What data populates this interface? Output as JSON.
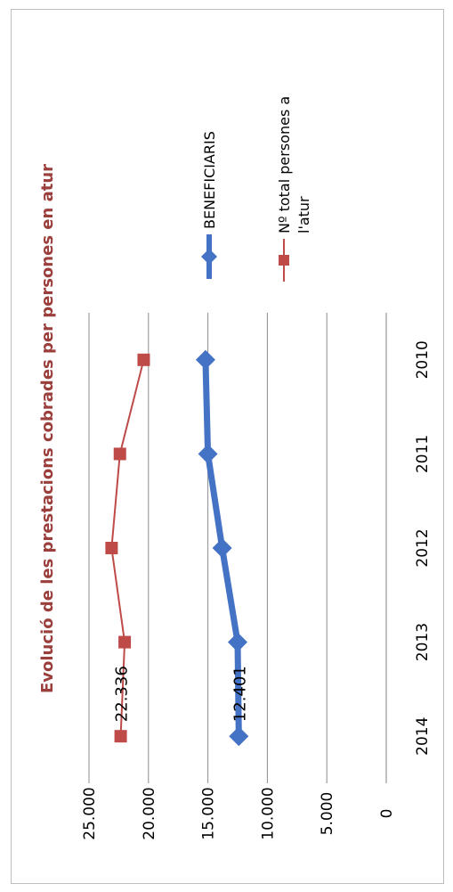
{
  "chart_data": {
    "type": "line",
    "title": "Evolució de les prestacions cobrades per persones en atur",
    "categories": [
      "2010",
      "2011",
      "2012",
      "2013",
      "2014"
    ],
    "series": [
      {
        "name": "BENEFICIARIS",
        "values": [
          15200,
          15000,
          13800,
          12500,
          12401
        ],
        "color": "#4472c4",
        "marker": "diamond",
        "data_label": "12.401"
      },
      {
        "name": "Nº total persones a l'atur",
        "name_lines": [
          "Nº total persones a",
          "l'atur"
        ],
        "values": [
          20400,
          22400,
          23100,
          22000,
          22336
        ],
        "color": "#be4b48",
        "marker": "square",
        "data_label": "22.336"
      }
    ],
    "ylim": [
      0,
      25000
    ],
    "yticks": [
      0,
      5000,
      10000,
      15000,
      20000,
      25000
    ],
    "ytick_labels": [
      "0",
      "5.000",
      "10.000",
      "15.000",
      "20.000",
      "25.000"
    ],
    "grid": true,
    "legend": "right",
    "title_color": "#9b3f3c"
  }
}
